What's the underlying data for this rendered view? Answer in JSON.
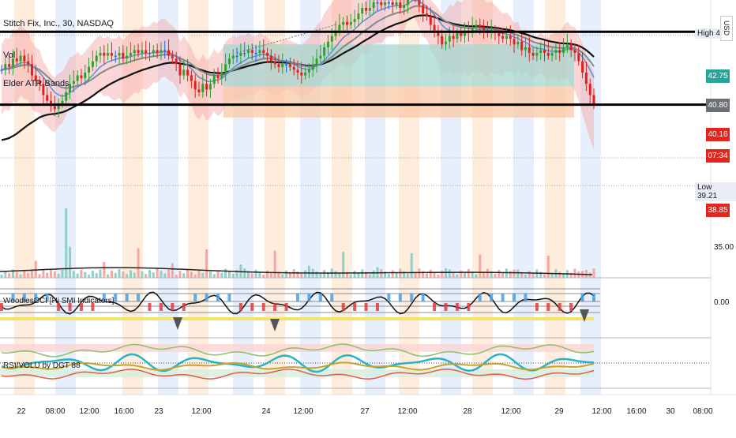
{
  "header": {
    "symbol_title": "Stitch Fix, Inc., 30, NASDAQ",
    "currency": "USD"
  },
  "indicators": {
    "volume_label": "Vol",
    "atr_label": "Elder ATR Bands",
    "momentum_label": "WoodiesCCI  [Hi SMI Indicators]",
    "rsi_label": "RSI/VOLU by DGT 88"
  },
  "price_axis": {
    "ticks": [
      "35.00"
    ],
    "high_label": "High",
    "high_value": "4",
    "low_label": "Low",
    "low_value": "39.21",
    "tags": [
      {
        "text": "42.75",
        "color": "#26a69a"
      },
      {
        "text": "40.80",
        "color": "#6b6e77"
      },
      {
        "text": "40.16",
        "color": "#e0261f"
      },
      {
        "text": "07:34",
        "color": "#e0261f"
      },
      {
        "text": "38.85",
        "color": "#e0261f"
      }
    ]
  },
  "osc_axis": {
    "ticks": [
      "0.00"
    ]
  },
  "time_axis": {
    "labels": [
      "22",
      "08:00",
      "12:00",
      "16:00",
      "23",
      "12:00",
      "24",
      "12:00",
      "27",
      "12:00",
      "28",
      "12:00",
      "29",
      "12:00",
      "16:00",
      "30",
      "08:00"
    ]
  },
  "colors": {
    "up": "#2ea12e",
    "down": "#e02020",
    "neutral": "#2563eb",
    "ema_fast": "#5b8fd6",
    "ema_mid": "#7d8b8b",
    "ema_slow": "#111111",
    "band": "#f3a4a4",
    "session_orange": "#fde6d0",
    "session_blue": "#dfe8fb",
    "hline": "#000000"
  },
  "chart_data": {
    "type": "candlestick",
    "ylim": [
      34.2,
      43.6
    ],
    "session_days": [
      "22",
      "23",
      "24",
      "27",
      "28",
      "29"
    ],
    "horizontal_levels": [
      42.75,
      40.16
    ],
    "rect_zones": [
      {
        "from_bar": 58,
        "to_bar": 150,
        "top": 42.3,
        "bottom": 40.8,
        "fill": "teal"
      },
      {
        "from_bar": 58,
        "to_bar": 150,
        "top": 40.8,
        "bottom": 39.7,
        "fill": "orange"
      }
    ],
    "closes": [
      41.4,
      41.6,
      41.5,
      41.8,
      41.7,
      41.9,
      41.7,
      41.6,
      41.2,
      41.0,
      40.9,
      40.5,
      40.3,
      40.1,
      40.0,
      40.2,
      40.3,
      40.6,
      40.9,
      41.0,
      41.2,
      41.1,
      41.3,
      41.5,
      41.7,
      41.9,
      42.0,
      41.9,
      42.0,
      41.9,
      41.9,
      42.0,
      41.8,
      41.9,
      42.0,
      42.1,
      42.0,
      42.1,
      42.0,
      42.0,
      42.1,
      42.0,
      42.1,
      42.1,
      41.9,
      41.8,
      41.6,
      41.2,
      41.4,
      41.2,
      41.0,
      40.7,
      40.6,
      40.9,
      40.7,
      40.9,
      41.2,
      41.1,
      41.3,
      41.6,
      41.8,
      41.9,
      41.9,
      42.0,
      42.0,
      42.1,
      42.0,
      42.0,
      42.1,
      42.0,
      41.9,
      41.7,
      41.6,
      41.5,
      41.6,
      41.6,
      41.5,
      41.4,
      41.3,
      41.2,
      41.3,
      41.4,
      41.6,
      41.8,
      41.9,
      42.2,
      42.4,
      42.6,
      42.8,
      43.0,
      43.1,
      43.0,
      43.1,
      43.2,
      43.4,
      43.6,
      43.5,
      43.6,
      43.8,
      43.8,
      43.7,
      43.8,
      43.8,
      43.7,
      43.8,
      43.6,
      43.7,
      44.0,
      44.2,
      44.0,
      43.7,
      43.4,
      43.3,
      43.0,
      42.8,
      42.6,
      42.3,
      42.4,
      42.6,
      42.5,
      42.7,
      42.6,
      42.8,
      42.7,
      42.9,
      43.0,
      42.9,
      42.8,
      42.7,
      42.8,
      42.7,
      42.6,
      42.5,
      42.6,
      42.5,
      42.3,
      42.4,
      42.1,
      42.2,
      42.0,
      41.9,
      42.0,
      42.1,
      42.0,
      41.9,
      42.0,
      42.1,
      42.0,
      42.2,
      42.3,
      42.1,
      42.0,
      41.7,
      41.3,
      40.9,
      40.5,
      40.16
    ]
  }
}
